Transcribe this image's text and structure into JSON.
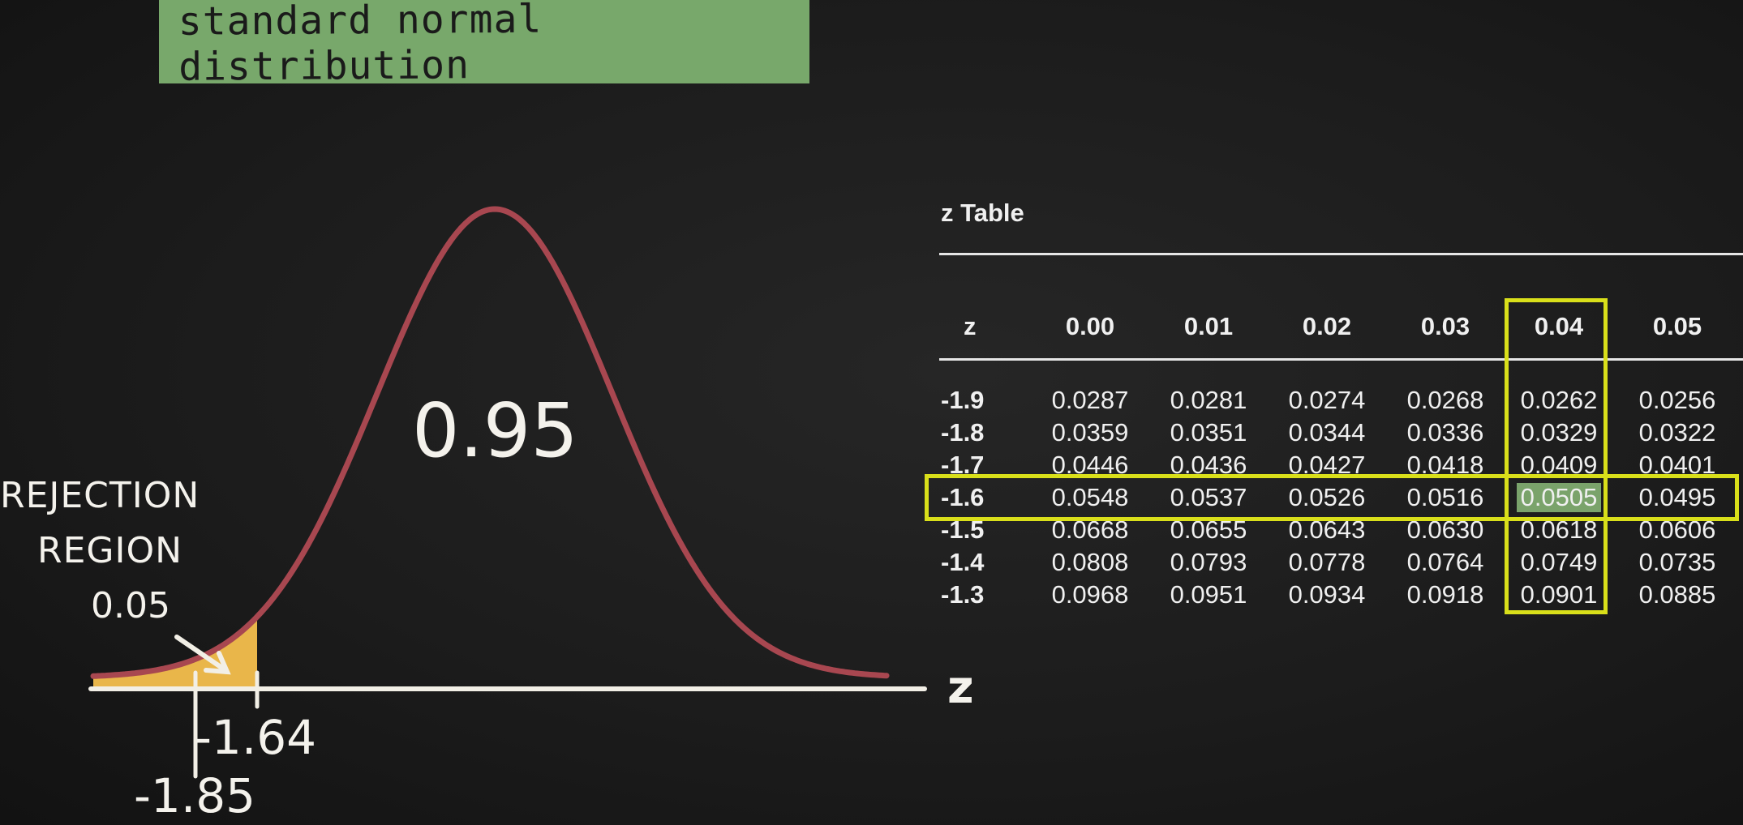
{
  "title": "standard normal distribution",
  "center_probability": "0.95",
  "rejection_label_line1": "REJECTION",
  "rejection_label_line2": "REGION",
  "rejection_value": "0.05",
  "axis_label": "z",
  "critical_value": "-1.64",
  "test_statistic": "-1.85",
  "colors": {
    "banner": "#78a86b",
    "curve": "#a84750",
    "rejection_fill": "#e9b64a",
    "highlight_box": "#d9df1a",
    "highlight_cell": "#7aa36b"
  },
  "z_table": {
    "title": "z Table",
    "header_z": "z",
    "columns": [
      "0.00",
      "0.01",
      "0.02",
      "0.03",
      "0.04",
      "0.05"
    ],
    "rows": [
      {
        "z": "-1.9",
        "values": [
          "0.0287",
          "0.0281",
          "0.0274",
          "0.0268",
          "0.0262",
          "0.0256"
        ]
      },
      {
        "z": "-1.8",
        "values": [
          "0.0359",
          "0.0351",
          "0.0344",
          "0.0336",
          "0.0329",
          "0.0322"
        ]
      },
      {
        "z": "-1.7",
        "values": [
          "0.0446",
          "0.0436",
          "0.0427",
          "0.0418",
          "0.0409",
          "0.0401"
        ]
      },
      {
        "z": "-1.6",
        "values": [
          "0.0548",
          "0.0537",
          "0.0526",
          "0.0516",
          "0.0505",
          "0.0495"
        ]
      },
      {
        "z": "-1.5",
        "values": [
          "0.0668",
          "0.0655",
          "0.0643",
          "0.0630",
          "0.0618",
          "0.0606"
        ]
      },
      {
        "z": "-1.4",
        "values": [
          "0.0808",
          "0.0793",
          "0.0778",
          "0.0764",
          "0.0749",
          "0.0735"
        ]
      },
      {
        "z": "-1.3",
        "values": [
          "0.0968",
          "0.0951",
          "0.0934",
          "0.0918",
          "0.0901",
          "0.0885"
        ]
      }
    ],
    "highlight_row": "-1.6",
    "highlight_column": "0.04"
  }
}
